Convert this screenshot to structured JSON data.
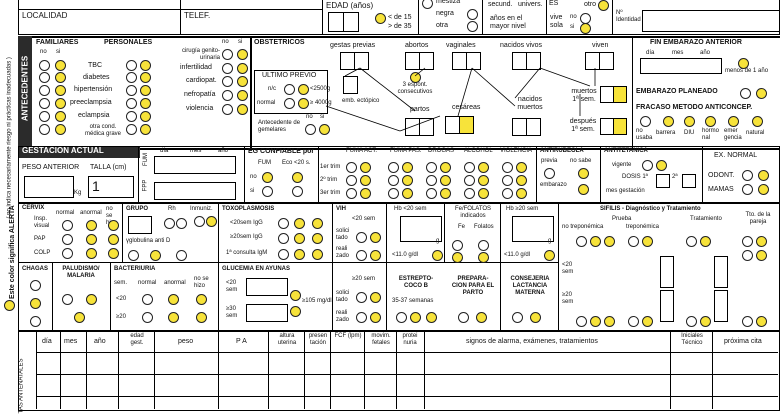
{
  "top": {
    "localidad": "LOCALIDAD",
    "telef": "TELEF.",
    "edad": "EDAD (años)",
    "lt15": "< de 15",
    "gt35": "> de 35",
    "mestiza": "mestiza",
    "negra": "negra",
    "otra": "otra",
    "secund": "secund.",
    "univers": "univers.",
    "anios_mayor": "años en el mayor nivel",
    "vive_sola": "vive sola",
    "no": "no",
    "si": "si",
    "otro": "otro",
    "n_identidad": "Nº Identidad",
    "es": "ES"
  },
  "side": {
    "alerta": "Este color significa ALERTA",
    "practicas": "( no indica necesariamente riesgo ni prácticas inadecuadas )",
    "antecedentes": "ANTECEDENTES",
    "gestacion": "GESTACION ACTUAL",
    "antenatales": "TAS ANTENATALES"
  },
  "antecedentes": {
    "familiares": "FAMILIARES",
    "personales": "PERSONALES",
    "no": "no",
    "si": "si",
    "tbc": "TBC",
    "diabetes": "diabetes",
    "hipertension": "hipertensión",
    "preeclampsia": "preeclampsia",
    "eclampsia": "eclampsia",
    "otra_cond": "otra cond. médica grave",
    "cirugia": "cirugía genito-urinaria",
    "infertilidad": "infertilidad",
    "cardiopat": "cardiopat.",
    "nefropatia": "nefropatía",
    "violencia": "violencia",
    "obstetricos": "OBSTETRICOS",
    "gestas": "gestas previas",
    "abortos": "abortos",
    "vaginales": "vaginales",
    "nacidos_vivos": "nacidos vivos",
    "viven": "viven",
    "ultimo_previo": "ULTIMO PREVIO",
    "nc": "n/c",
    "normal": "normal",
    "lt2500": "<2500g",
    "gt4000": "≥ 4000g",
    "emb_ectopico": "emb. ectópico",
    "espont": "3 espont. consecutivos",
    "partos": "partos",
    "cesareas": "cesáreas",
    "nacidos_muertos": "nacidos muertos",
    "gemelares": "Antecedente de gemelares",
    "muertos_1sem": "muertos 1ª sem.",
    "despues_1sem": "después 1ª sem.",
    "fin_embarazo": "FIN EMBARAZO ANTERIOR",
    "dia": "día",
    "mes": "mes",
    "anio": "año",
    "menos_1": "menos de 1 año",
    "planeado": "EMBARAZO PLANEADO",
    "fracaso": "FRACASO METODO ANTICONCEP.",
    "metodos": [
      "no usaba",
      "barrera",
      "DIU",
      "hormo nal",
      "emer gencia",
      "natural"
    ]
  },
  "gestacion": {
    "peso_anterior": "PESO ANTERIOR",
    "talla": "TALLA (cm)",
    "talla_val": "1",
    "kg": "Kg",
    "fum": "FUM",
    "fpp": "FPP",
    "eg_confiable": "EG CONFIABLE por",
    "fum2": "FUM",
    "eco": "Eco <20 s.",
    "fuma_act": "FUMA ACT.",
    "fuma_pas": "FUMA PAS.",
    "drogas": "DROGAS",
    "alcohol": "ALCOHOL",
    "violencia": "VIOLENCIA",
    "trim1": "1er trim",
    "trim2": "2º trim",
    "trim3": "3er trim",
    "antirubeola": "ANTIRUBEOLA",
    "previa": "previa",
    "no_sabe": "no sabe",
    "embarazo": "embarazo",
    "antitetanica": "ANTITETANICA",
    "vigente": "vigente",
    "dosis": "DOSIS 1ª",
    "dosis2": "2ª",
    "mes_gest": "mes gestación",
    "ex_normal": "EX. NORMAL",
    "odont": "ODONT.",
    "mamas": "MAMAS"
  },
  "labs": {
    "cervix": "CERVIX",
    "normal": "normal",
    "anormal": "anormal",
    "no_se_hizo": "no se hizo",
    "insp": "Insp. visual",
    "pap": "PAP",
    "colp": "COLP",
    "grupo": "GRUPO",
    "rh": "Rh",
    "inmuniz": "Inmuniz.",
    "gamma": "γglobulina anti D",
    "toxo": "TOXOPLASMOSIS",
    "lt20igg": "<20sem IgG",
    "ge20igg": "≥20sem IgG",
    "consulta": "1ª consulta IgM",
    "vih": "VIH",
    "lt20": "<20 sem",
    "solicitado": "solici tado",
    "realizado": "reali zado",
    "ge20": "≥20 sem",
    "hb_lt20": "Hb <20 sem",
    "folatos": "Fe/FOLATOS indicados",
    "fe": "Fe",
    "folatos2": "Folatos",
    "hb_ge20": "Hb ≥20 sem",
    "g": "g",
    "lt11": "<11.0 g/dl",
    "sifilis": "SIFILIS - Diagnóstico y Tratamiento",
    "prueba": "Prueba",
    "no_trep": "no treponémica",
    "trep": "treponémica",
    "tratamiento": "Tratamiento",
    "tto": "Tto. de la pareja",
    "semanas": "semanas",
    "chagas": "CHAGAS",
    "paludismo": "PALUDISMO/ MALARIA",
    "bacteriuria": "BACTERIURIA",
    "sem": "sem.",
    "lt20b": "<20",
    "ge20b": "≥20",
    "glucemia": "GLUCEMIA EN AYUNAS",
    "ge105": "≥105 mg/dl",
    "ge30": "≥30 sem",
    "estrepto": "ESTREPTO- COCO B",
    "estrepto_sem": "35-37 semanas",
    "preparacion": "PREPARA- CION PARA EL PARTO",
    "consejeria": "CONSEJERIA LACTANCIA MATERNA",
    "nc": "n/c",
    "sd": "s/d"
  },
  "consultas": {
    "cols": [
      "día",
      "mes",
      "año",
      "edad gest.",
      "peso",
      "P A",
      "altura uterina",
      "presen tación",
      "FCF (lpm)",
      "movim. fetales",
      "protei nuria",
      "signos de alarma, exámenes, tratamientos",
      "Iniciales Técnico",
      "próxima cita"
    ]
  }
}
